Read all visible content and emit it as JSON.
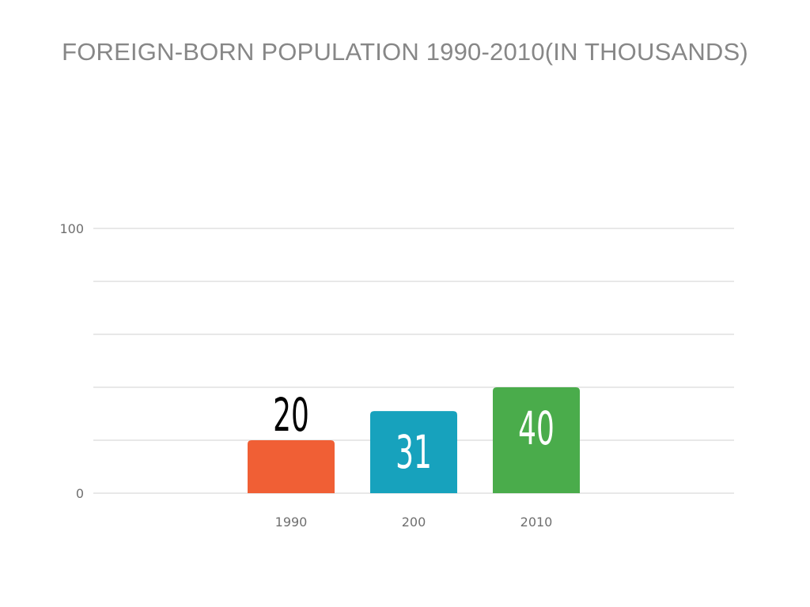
{
  "chart_data": {
    "type": "bar",
    "title": "FOREIGN-BORN POPULATION 1990-2010(IN THOUSANDS)",
    "xlabel": "",
    "ylabel": "",
    "categories": [
      "1990",
      "200",
      "2010"
    ],
    "values": [
      20,
      31,
      40
    ],
    "data_labels": [
      "20",
      "31",
      "40"
    ],
    "bar_colors": [
      "#f05f35",
      "#17a2bd",
      "#4aac4b"
    ],
    "data_label_colors": [
      "#000000",
      "#ffffff",
      "#ffffff"
    ],
    "data_label_position": [
      "above",
      "inside",
      "inside"
    ],
    "ylim": [
      0,
      100
    ],
    "y_tick_labels": [
      "0",
      "100"
    ],
    "gridlines": true,
    "legend": "none"
  }
}
